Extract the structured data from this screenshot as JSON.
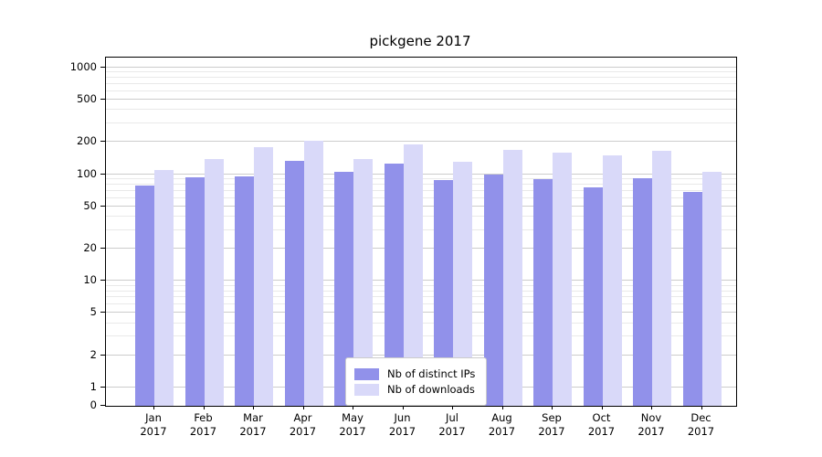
{
  "chart_data": {
    "type": "bar",
    "title": "pickgene 2017",
    "categories": [
      "Jan",
      "Feb",
      "Mar",
      "Apr",
      "May",
      "Jun",
      "Jul",
      "Aug",
      "Sep",
      "Oct",
      "Nov",
      "Dec"
    ],
    "xaxis": {
      "year": "2017"
    },
    "yaxis": {
      "scale": "symlog",
      "ticks": [
        0,
        1,
        2,
        5,
        10,
        20,
        50,
        100,
        200,
        500,
        1000
      ],
      "ylim": [
        0,
        1240
      ]
    },
    "grid": true,
    "legend_position": "lower center",
    "series": [
      {
        "name": "Nb of distinct IPs",
        "color": "#9191ea",
        "values": [
          78,
          93,
          95,
          133,
          105,
          125,
          88,
          100,
          90,
          76,
          92,
          68
        ]
      },
      {
        "name": "Nb of downloads",
        "color": "#d9d9f9",
        "values": [
          110,
          140,
          180,
          205,
          140,
          190,
          130,
          170,
          160,
          150,
          165,
          105
        ]
      }
    ]
  }
}
